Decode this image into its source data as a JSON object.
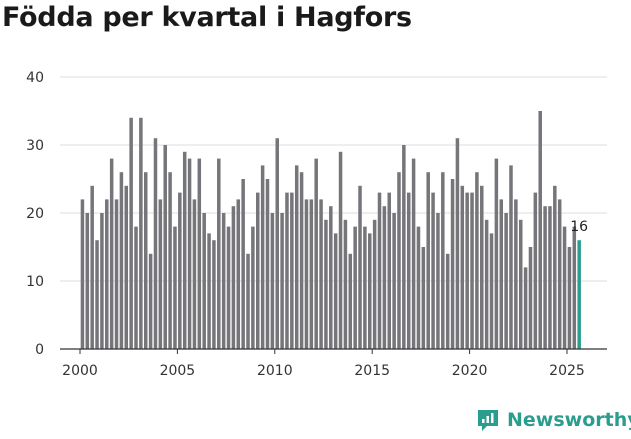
{
  "chart_data": {
    "type": "bar",
    "title": "Födda per kvartal i Hagfors",
    "ylim": [
      0,
      40
    ],
    "yticks": [
      0,
      10,
      20,
      30,
      40
    ],
    "xticks": [
      "2000",
      "2005",
      "2010",
      "2015",
      "2020",
      "2025"
    ],
    "x_start": 2000.125,
    "quarters_per_year": 4,
    "values": [
      22,
      20,
      24,
      16,
      20,
      22,
      28,
      22,
      26,
      24,
      34,
      18,
      34,
      26,
      14,
      31,
      22,
      30,
      26,
      18,
      23,
      29,
      28,
      22,
      28,
      20,
      17,
      16,
      28,
      20,
      18,
      21,
      22,
      25,
      14,
      18,
      23,
      27,
      25,
      20,
      31,
      20,
      23,
      23,
      27,
      26,
      22,
      22,
      28,
      22,
      19,
      21,
      17,
      29,
      19,
      14,
      18,
      24,
      18,
      17,
      19,
      23,
      21,
      23,
      20,
      26,
      30,
      23,
      28,
      18,
      15,
      26,
      23,
      20,
      26,
      14,
      25,
      31,
      24,
      23,
      23,
      26,
      24,
      19,
      17,
      28,
      22,
      20,
      27,
      22,
      19,
      12,
      15,
      23,
      35,
      21,
      21,
      24,
      22,
      18,
      15,
      18,
      16
    ],
    "highlight_last": true,
    "last_label": "16",
    "bar_color": "#76757a",
    "highlight_color": "#2a9d8f"
  },
  "brand": {
    "name": "Newsworthy",
    "icon": "newsworthy-logo-icon",
    "color": "#2a9d8f"
  }
}
